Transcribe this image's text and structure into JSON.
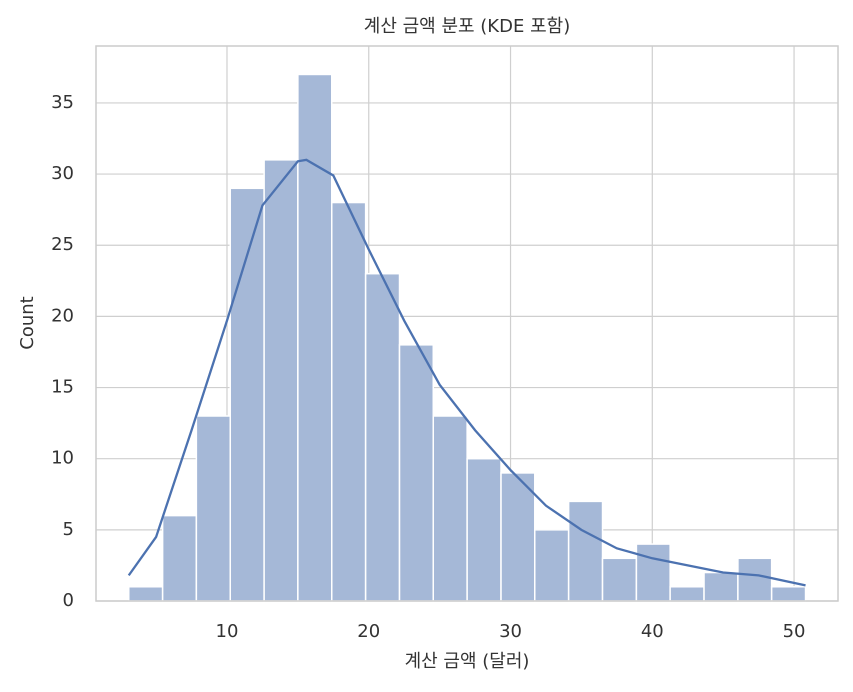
{
  "chart_data": {
    "type": "histogram",
    "title": "계산 금액 분포 (KDE 포함)",
    "xlabel": "계산 금액 (달러)",
    "ylabel": "Count",
    "bins": [
      3.07,
      5.46,
      7.84,
      10.23,
      12.62,
      15.0,
      17.39,
      19.78,
      22.17,
      24.55,
      26.94,
      29.33,
      31.71,
      34.1,
      36.49,
      38.88,
      41.26,
      43.65,
      46.04,
      48.42,
      50.81
    ],
    "counts": [
      1,
      6,
      13,
      29,
      31,
      37,
      28,
      23,
      18,
      13,
      10,
      9,
      5,
      7,
      3,
      4,
      1,
      2,
      3,
      1
    ],
    "color": "#a5b8d7",
    "kde": {
      "color": "#4c72b0",
      "x": [
        3.07,
        5,
        7.5,
        10,
        12.5,
        15,
        15.6,
        17.5,
        20,
        22.5,
        25,
        27.5,
        30,
        32.5,
        35,
        37.5,
        40,
        42.5,
        45,
        47.5,
        50.81
      ],
      "values": [
        1.8,
        4.5,
        12.0,
        19.7,
        27.8,
        30.9,
        31.0,
        29.9,
        24.7,
        19.7,
        15.2,
        12.0,
        9.2,
        6.7,
        5.0,
        3.7,
        3.0,
        2.5,
        2.0,
        1.8,
        1.1
      ]
    },
    "xlim": [
      0.76,
      53.1
    ],
    "ylim": [
      0,
      39
    ],
    "xticks": [
      10,
      20,
      30,
      40,
      50
    ],
    "yticks": [
      0,
      5,
      10,
      15,
      20,
      25,
      30,
      35
    ],
    "grid": true
  }
}
